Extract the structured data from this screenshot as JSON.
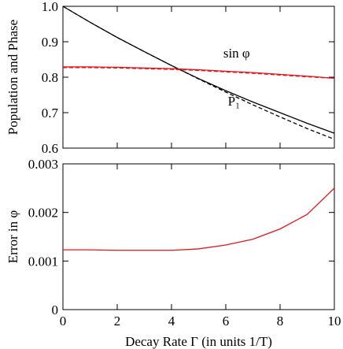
{
  "chart_data": [
    {
      "type": "line",
      "ylabel": "Population and Phase",
      "x": [
        0,
        1,
        2,
        3,
        4,
        5,
        6,
        7,
        8,
        9,
        10
      ],
      "series": [
        {
          "name": "P₁",
          "color": "#000000",
          "dash": false,
          "values": [
            1.0,
            0.955,
            0.912,
            0.872,
            0.833,
            0.796,
            0.762,
            0.73,
            0.7,
            0.67,
            0.642
          ]
        },
        {
          "color": "#000000",
          "dash": true,
          "values": [
            1.0,
            0.955,
            0.912,
            0.872,
            0.833,
            0.795,
            0.758,
            0.722,
            0.688,
            0.655,
            0.625
          ]
        },
        {
          "name": "sin φ",
          "color": "#e8141a",
          "dash": false,
          "values": [
            0.829,
            0.829,
            0.828,
            0.826,
            0.824,
            0.821,
            0.817,
            0.813,
            0.808,
            0.803,
            0.797
          ]
        },
        {
          "color": "#e8141a",
          "dash": true,
          "values": [
            0.827,
            0.827,
            0.826,
            0.824,
            0.822,
            0.819,
            0.815,
            0.811,
            0.806,
            0.801,
            0.797
          ]
        }
      ],
      "xlim": [
        0,
        10
      ],
      "ylim": [
        0.6,
        1.0
      ],
      "xticks": [
        0,
        2,
        4,
        6,
        8,
        10
      ],
      "show_xtick_labels": false,
      "yticks": [
        0.6,
        0.7,
        0.8,
        0.9,
        {
          "value": 1,
          "label": "1.0"
        }
      ]
    },
    {
      "type": "line",
      "ylabel": "Error in φ",
      "xlabel": "Decay Rate Γ (in units 1/T)",
      "x": [
        0,
        1,
        2,
        3,
        4,
        5,
        6,
        7,
        8,
        9,
        10
      ],
      "series": [
        {
          "color": "#e8141a",
          "dash": false,
          "values": [
            0.00123,
            0.00123,
            0.00122,
            0.00122,
            0.00122,
            0.00125,
            0.00133,
            0.00145,
            0.00166,
            0.00196,
            0.0025
          ]
        }
      ],
      "xlim": [
        0,
        10
      ],
      "ylim": [
        0,
        0.003
      ],
      "xticks": [
        0,
        2,
        4,
        6,
        8,
        10
      ],
      "show_xtick_labels": true,
      "yticks": [
        0,
        0.001,
        0.002,
        0.003
      ]
    }
  ]
}
